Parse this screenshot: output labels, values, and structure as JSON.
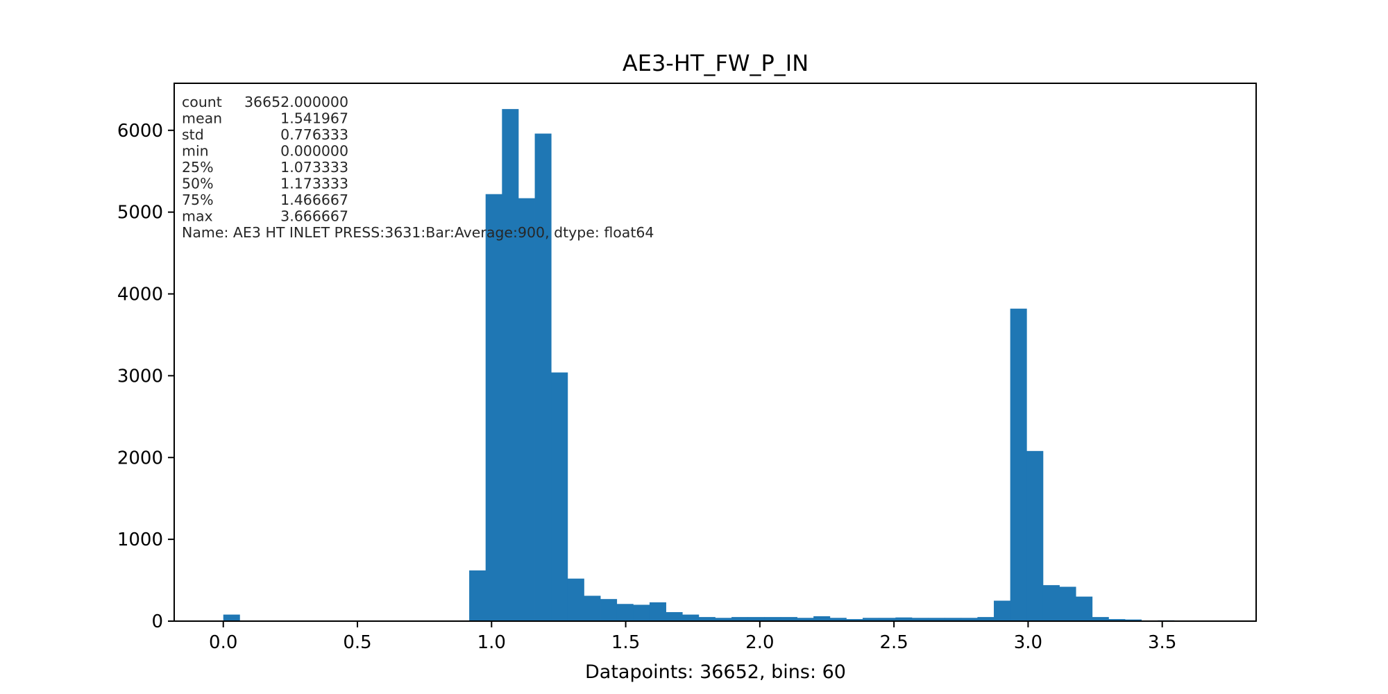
{
  "chart_data": {
    "type": "bar",
    "title": "AE3-HT_FW_P_IN",
    "xlabel": "Datapoints: 36652, bins: 60",
    "ylabel": "",
    "bin_min": 0.0,
    "bin_max": 3.666667,
    "bin_count": 60,
    "values": [
      80,
      0,
      0,
      0,
      0,
      0,
      0,
      0,
      0,
      0,
      0,
      0,
      0,
      0,
      0,
      620,
      5220,
      6260,
      5170,
      5960,
      3040,
      520,
      310,
      270,
      210,
      200,
      230,
      110,
      80,
      50,
      40,
      50,
      50,
      50,
      50,
      40,
      60,
      40,
      25,
      40,
      40,
      45,
      40,
      40,
      40,
      40,
      50,
      250,
      3820,
      2080,
      440,
      420,
      300,
      50,
      25,
      20,
      5,
      10,
      5,
      2
    ],
    "xlim": [
      -0.183,
      3.85
    ],
    "ylim": [
      0,
      6575
    ],
    "x_ticks": [
      {
        "value": 0.0,
        "label": "0.0"
      },
      {
        "value": 0.5,
        "label": "0.5"
      },
      {
        "value": 1.0,
        "label": "1.0"
      },
      {
        "value": 1.5,
        "label": "1.5"
      },
      {
        "value": 2.0,
        "label": "2.0"
      },
      {
        "value": 2.5,
        "label": "2.5"
      },
      {
        "value": 3.0,
        "label": "3.0"
      },
      {
        "value": 3.5,
        "label": "3.5"
      }
    ],
    "y_ticks": [
      {
        "value": 0,
        "label": "0"
      },
      {
        "value": 1000,
        "label": "1000"
      },
      {
        "value": 2000,
        "label": "2000"
      },
      {
        "value": 3000,
        "label": "3000"
      },
      {
        "value": 4000,
        "label": "4000"
      },
      {
        "value": 5000,
        "label": "5000"
      },
      {
        "value": 6000,
        "label": "6000"
      }
    ],
    "bar_color": "#1f77b4",
    "grid": false,
    "stats_text": [
      "count    36652.000000",
      "mean         1.541967",
      "std          0.776333",
      "min          0.000000",
      "25%          1.073333",
      "50%          1.173333",
      "75%          1.466667",
      "max          3.666667",
      "Name: AE3 HT INLET PRESS:3631:Bar:Average:900, dtype: float64"
    ]
  }
}
